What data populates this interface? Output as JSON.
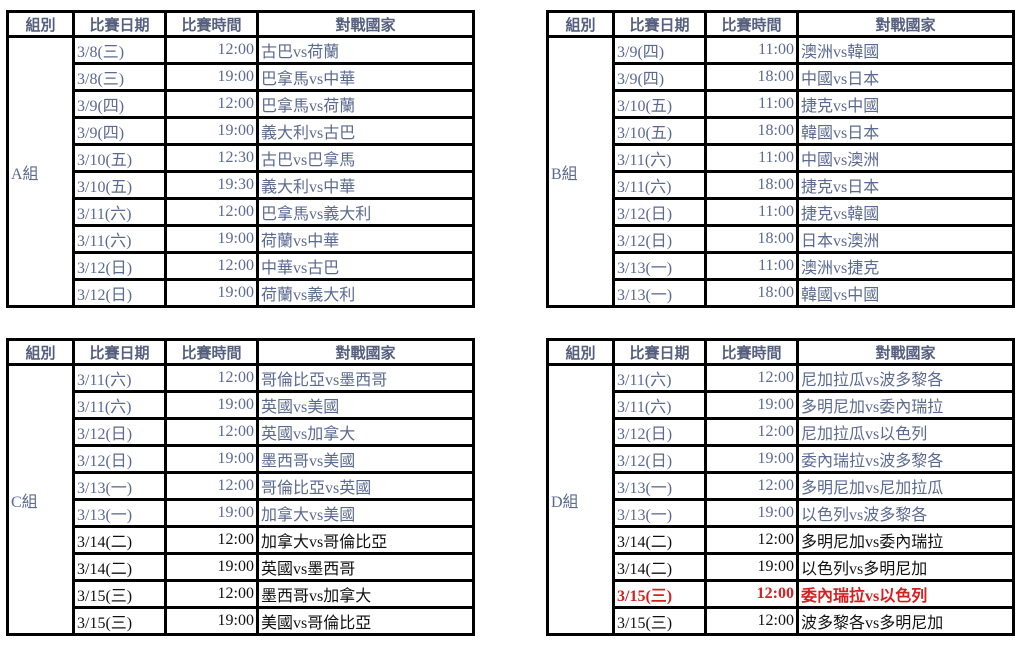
{
  "headers": {
    "group": "組別",
    "date": "比賽日期",
    "time": "比賽時間",
    "match": "對戰國家"
  },
  "colors": {
    "past": "#5b6a8f",
    "upcoming": "#111111",
    "highlight": "#d42020"
  },
  "tables": [
    {
      "group": "A組",
      "rows": [
        {
          "date": "3/8(三)",
          "time": "12:00",
          "match": "古巴vs荷蘭",
          "status": "past"
        },
        {
          "date": "3/8(三)",
          "time": "19:00",
          "match": "巴拿馬vs中華",
          "status": "past"
        },
        {
          "date": "3/9(四)",
          "time": "12:00",
          "match": "巴拿馬vs荷蘭",
          "status": "past"
        },
        {
          "date": "3/9(四)",
          "time": "19:00",
          "match": "義大利vs古巴",
          "status": "past"
        },
        {
          "date": "3/10(五)",
          "time": "12:30",
          "match": "古巴vs巴拿馬",
          "status": "past"
        },
        {
          "date": "3/10(五)",
          "time": "19:30",
          "match": "義大利vs中華",
          "status": "past"
        },
        {
          "date": "3/11(六)",
          "time": "12:00",
          "match": "巴拿馬vs義大利",
          "status": "past"
        },
        {
          "date": "3/11(六)",
          "time": "19:00",
          "match": "荷蘭vs中華",
          "status": "past"
        },
        {
          "date": "3/12(日)",
          "time": "12:00",
          "match": "中華vs古巴",
          "status": "past"
        },
        {
          "date": "3/12(日)",
          "time": "19:00",
          "match": "荷蘭vs義大利",
          "status": "past"
        }
      ]
    },
    {
      "group": "B組",
      "rows": [
        {
          "date": "3/9(四)",
          "time": "11:00",
          "match": "澳洲vs韓國",
          "status": "past"
        },
        {
          "date": "3/9(四)",
          "time": "18:00",
          "match": "中國vs日本",
          "status": "past"
        },
        {
          "date": "3/10(五)",
          "time": "11:00",
          "match": "捷克vs中國",
          "status": "past"
        },
        {
          "date": "3/10(五)",
          "time": "18:00",
          "match": "韓國vs日本",
          "status": "past"
        },
        {
          "date": "3/11(六)",
          "time": "11:00",
          "match": "中國vs澳洲",
          "status": "past"
        },
        {
          "date": "3/11(六)",
          "time": "18:00",
          "match": "捷克vs日本",
          "status": "past"
        },
        {
          "date": "3/12(日)",
          "time": "11:00",
          "match": "捷克vs韓國",
          "status": "past"
        },
        {
          "date": "3/12(日)",
          "time": "18:00",
          "match": "日本vs澳洲",
          "status": "past"
        },
        {
          "date": "3/13(一)",
          "time": "11:00",
          "match": "澳洲vs捷克",
          "status": "past"
        },
        {
          "date": "3/13(一)",
          "time": "18:00",
          "match": "韓國vs中國",
          "status": "past"
        }
      ]
    },
    {
      "group": "C組",
      "rows": [
        {
          "date": "3/11(六)",
          "time": "12:00",
          "match": "哥倫比亞vs墨西哥",
          "status": "past"
        },
        {
          "date": "3/11(六)",
          "time": "19:00",
          "match": "英國vs美國",
          "status": "past"
        },
        {
          "date": "3/12(日)",
          "time": "12:00",
          "match": "英國vs加拿大",
          "status": "past"
        },
        {
          "date": "3/12(日)",
          "time": "19:00",
          "match": "墨西哥vs美國",
          "status": "past"
        },
        {
          "date": "3/13(一)",
          "time": "12:00",
          "match": "哥倫比亞vs英國",
          "status": "past"
        },
        {
          "date": "3/13(一)",
          "time": "19:00",
          "match": "加拿大vs美國",
          "status": "past"
        },
        {
          "date": "3/14(二)",
          "time": "12:00",
          "match": "加拿大vs哥倫比亞",
          "status": "upcoming"
        },
        {
          "date": "3/14(二)",
          "time": "19:00",
          "match": "英國vs墨西哥",
          "status": "upcoming"
        },
        {
          "date": "3/15(三)",
          "time": "12:00",
          "match": "墨西哥vs加拿大",
          "status": "upcoming"
        },
        {
          "date": "3/15(三)",
          "time": "19:00",
          "match": "美國vs哥倫比亞",
          "status": "upcoming"
        }
      ]
    },
    {
      "group": "D組",
      "rows": [
        {
          "date": "3/11(六)",
          "time": "12:00",
          "match": "尼加拉瓜vs波多黎各",
          "status": "past"
        },
        {
          "date": "3/11(六)",
          "time": "19:00",
          "match": "多明尼加vs委內瑞拉",
          "status": "past"
        },
        {
          "date": "3/12(日)",
          "time": "12:00",
          "match": "尼加拉瓜vs以色列",
          "status": "past"
        },
        {
          "date": "3/12(日)",
          "time": "19:00",
          "match": "委內瑞拉vs波多黎各",
          "status": "past"
        },
        {
          "date": "3/13(一)",
          "time": "12:00",
          "match": "多明尼加vs尼加拉瓜",
          "status": "past"
        },
        {
          "date": "3/13(一)",
          "time": "19:00",
          "match": "以色列vs波多黎各",
          "status": "past"
        },
        {
          "date": "3/14(二)",
          "time": "12:00",
          "match": "多明尼加vs委內瑞拉",
          "status": "upcoming"
        },
        {
          "date": "3/14(二)",
          "time": "19:00",
          "match": "以色列vs多明尼加",
          "status": "upcoming"
        },
        {
          "date": "3/15(三)",
          "time": "12:00",
          "match": "委內瑞拉vs以色列",
          "status": "highlight"
        },
        {
          "date": "3/15(三)",
          "time": "12:00",
          "match": "波多黎各vs多明尼加",
          "status": "upcoming"
        }
      ]
    }
  ]
}
